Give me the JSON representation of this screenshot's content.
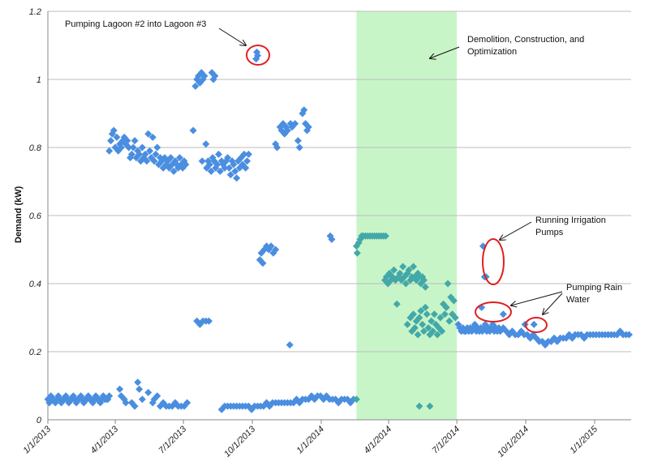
{
  "chart_data": {
    "type": "scatter",
    "title": "",
    "xlabel": "",
    "ylabel": "Demand (kW)",
    "ylim": [
      0,
      1.2
    ],
    "yticks": [
      "0",
      "0.2",
      "0.4",
      "0.6",
      "0.8",
      "1",
      "1.2"
    ],
    "yticks_values": [
      0,
      0.2,
      0.4,
      0.6,
      0.8,
      1,
      1.2
    ],
    "x_unit": "days since 1/1/2013",
    "xlim": [
      0,
      778
    ],
    "xticks": [
      {
        "label": "1/1/2013",
        "day": 0
      },
      {
        "label": "4/1/2013",
        "day": 90
      },
      {
        "label": "7/1/2013",
        "day": 181
      },
      {
        "label": "10/1/2013",
        "day": 273
      },
      {
        "label": "1/1/2014",
        "day": 365
      },
      {
        "label": "4/1/2014",
        "day": 455
      },
      {
        "label": "7/1/2014",
        "day": 546
      },
      {
        "label": "10/1/2014",
        "day": 638
      },
      {
        "label": "1/1/2015",
        "day": 730
      }
    ],
    "grid": true,
    "shaded_period": {
      "label": "Demolition, Construction, and Optimization",
      "start_day": 412,
      "end_day": 546,
      "color": "#c8f5c8"
    },
    "colors": {
      "normal": "#4a8ee0",
      "construction": "#44a8a8",
      "annotation": "#e02020"
    },
    "annotations": [
      {
        "text": "Pumping Lagoon #2 into Lagoon #3"
      },
      {
        "text": "Demolition, Construction, and Optimization"
      },
      {
        "text": "Running Irrigation Pumps"
      },
      {
        "text": "Pumping Rain Water"
      }
    ],
    "points": [
      [
        0,
        0.06
      ],
      [
        2,
        0.05
      ],
      [
        4,
        0.07
      ],
      [
        6,
        0.06
      ],
      [
        8,
        0.06
      ],
      [
        10,
        0.05
      ],
      [
        12,
        0.06
      ],
      [
        14,
        0.07
      ],
      [
        16,
        0.06
      ],
      [
        18,
        0.05
      ],
      [
        20,
        0.06
      ],
      [
        22,
        0.06
      ],
      [
        24,
        0.07
      ],
      [
        26,
        0.06
      ],
      [
        28,
        0.05
      ],
      [
        30,
        0.06
      ],
      [
        32,
        0.06
      ],
      [
        34,
        0.07
      ],
      [
        36,
        0.06
      ],
      [
        38,
        0.05
      ],
      [
        40,
        0.06
      ],
      [
        42,
        0.06
      ],
      [
        44,
        0.07
      ],
      [
        46,
        0.06
      ],
      [
        48,
        0.05
      ],
      [
        50,
        0.06
      ],
      [
        52,
        0.06
      ],
      [
        54,
        0.07
      ],
      [
        56,
        0.06
      ],
      [
        58,
        0.06
      ],
      [
        60,
        0.05
      ],
      [
        62,
        0.06
      ],
      [
        64,
        0.07
      ],
      [
        66,
        0.06
      ],
      [
        68,
        0.06
      ],
      [
        70,
        0.05
      ],
      [
        72,
        0.06
      ],
      [
        74,
        0.07
      ],
      [
        76,
        0.06
      ],
      [
        78,
        0.06
      ],
      [
        80,
        0.06
      ],
      [
        82,
        0.07
      ],
      [
        82,
        0.79
      ],
      [
        84,
        0.82
      ],
      [
        86,
        0.84
      ],
      [
        88,
        0.85
      ],
      [
        90,
        0.8
      ],
      [
        92,
        0.83
      ],
      [
        94,
        0.79
      ],
      [
        96,
        0.81
      ],
      [
        98,
        0.8
      ],
      [
        100,
        0.82
      ],
      [
        102,
        0.83
      ],
      [
        104,
        0.81
      ],
      [
        106,
        0.82
      ],
      [
        108,
        0.8
      ],
      [
        110,
        0.77
      ],
      [
        112,
        0.78
      ],
      [
        114,
        0.8
      ],
      [
        116,
        0.82
      ],
      [
        118,
        0.77
      ],
      [
        120,
        0.79
      ],
      [
        122,
        0.78
      ],
      [
        124,
        0.76
      ],
      [
        126,
        0.8
      ],
      [
        128,
        0.77
      ],
      [
        130,
        0.78
      ],
      [
        132,
        0.76
      ],
      [
        134,
        0.84
      ],
      [
        136,
        0.79
      ],
      [
        138,
        0.77
      ],
      [
        140,
        0.83
      ],
      [
        142,
        0.76
      ],
      [
        144,
        0.78
      ],
      [
        146,
        0.8
      ],
      [
        148,
        0.75
      ],
      [
        150,
        0.77
      ],
      [
        152,
        0.76
      ],
      [
        154,
        0.74
      ],
      [
        156,
        0.77
      ],
      [
        158,
        0.75
      ],
      [
        160,
        0.76
      ],
      [
        162,
        0.74
      ],
      [
        164,
        0.77
      ],
      [
        166,
        0.75
      ],
      [
        168,
        0.73
      ],
      [
        170,
        0.76
      ],
      [
        172,
        0.75
      ],
      [
        174,
        0.74
      ],
      [
        176,
        0.77
      ],
      [
        178,
        0.75
      ],
      [
        180,
        0.74
      ],
      [
        182,
        0.76
      ],
      [
        184,
        0.75
      ],
      [
        96,
        0.09
      ],
      [
        98,
        0.07
      ],
      [
        102,
        0.06
      ],
      [
        104,
        0.05
      ],
      [
        112,
        0.05
      ],
      [
        116,
        0.04
      ],
      [
        120,
        0.11
      ],
      [
        122,
        0.09
      ],
      [
        126,
        0.06
      ],
      [
        134,
        0.08
      ],
      [
        140,
        0.05
      ],
      [
        142,
        0.06
      ],
      [
        146,
        0.07
      ],
      [
        150,
        0.04
      ],
      [
        154,
        0.05
      ],
      [
        158,
        0.04
      ],
      [
        162,
        0.04
      ],
      [
        166,
        0.04
      ],
      [
        170,
        0.05
      ],
      [
        174,
        0.04
      ],
      [
        178,
        0.04
      ],
      [
        182,
        0.04
      ],
      [
        186,
        0.05
      ],
      [
        194,
        0.85
      ],
      [
        197,
        0.98
      ],
      [
        199,
        1.0
      ],
      [
        201,
        1.01
      ],
      [
        203,
        0.99
      ],
      [
        205,
        1.02
      ],
      [
        207,
        1.0
      ],
      [
        209,
        1.01
      ],
      [
        219,
        1.02
      ],
      [
        221,
        1.0
      ],
      [
        223,
        1.01
      ],
      [
        199,
        0.29
      ],
      [
        203,
        0.28
      ],
      [
        207,
        0.29
      ],
      [
        211,
        0.29
      ],
      [
        215,
        0.29
      ],
      [
        211,
        0.81
      ],
      [
        206,
        0.76
      ],
      [
        212,
        0.74
      ],
      [
        214,
        0.76
      ],
      [
        216,
        0.75
      ],
      [
        218,
        0.73
      ],
      [
        220,
        0.77
      ],
      [
        222,
        0.76
      ],
      [
        224,
        0.74
      ],
      [
        226,
        0.75
      ],
      [
        228,
        0.78
      ],
      [
        230,
        0.73
      ],
      [
        232,
        0.76
      ],
      [
        234,
        0.75
      ],
      [
        236,
        0.74
      ],
      [
        238,
        0.76
      ],
      [
        240,
        0.77
      ],
      [
        242,
        0.74
      ],
      [
        244,
        0.72
      ],
      [
        246,
        0.76
      ],
      [
        248,
        0.75
      ],
      [
        250,
        0.73
      ],
      [
        252,
        0.71
      ],
      [
        254,
        0.76
      ],
      [
        256,
        0.74
      ],
      [
        258,
        0.77
      ],
      [
        260,
        0.75
      ],
      [
        262,
        0.78
      ],
      [
        264,
        0.74
      ],
      [
        266,
        0.76
      ],
      [
        268,
        0.78
      ],
      [
        232,
        0.03
      ],
      [
        236,
        0.04
      ],
      [
        240,
        0.04
      ],
      [
        244,
        0.04
      ],
      [
        248,
        0.04
      ],
      [
        252,
        0.04
      ],
      [
        256,
        0.04
      ],
      [
        260,
        0.04
      ],
      [
        264,
        0.04
      ],
      [
        268,
        0.04
      ],
      [
        272,
        0.03
      ],
      [
        276,
        0.04
      ],
      [
        280,
        0.04
      ],
      [
        284,
        0.04
      ],
      [
        288,
        0.04
      ],
      [
        292,
        0.05
      ],
      [
        296,
        0.04
      ],
      [
        300,
        0.05
      ],
      [
        304,
        0.05
      ],
      [
        308,
        0.05
      ],
      [
        312,
        0.05
      ],
      [
        316,
        0.05
      ],
      [
        320,
        0.05
      ],
      [
        324,
        0.05
      ],
      [
        328,
        0.05
      ],
      [
        332,
        0.06
      ],
      [
        336,
        0.05
      ],
      [
        340,
        0.06
      ],
      [
        344,
        0.06
      ],
      [
        348,
        0.06
      ],
      [
        352,
        0.07
      ],
      [
        356,
        0.06
      ],
      [
        360,
        0.07
      ],
      [
        364,
        0.07
      ],
      [
        368,
        0.06
      ],
      [
        372,
        0.07
      ],
      [
        376,
        0.06
      ],
      [
        380,
        0.06
      ],
      [
        384,
        0.06
      ],
      [
        388,
        0.05
      ],
      [
        392,
        0.06
      ],
      [
        396,
        0.06
      ],
      [
        400,
        0.06
      ],
      [
        404,
        0.05
      ],
      [
        408,
        0.06
      ],
      [
        412,
        0.06
      ],
      [
        278,
        1.06
      ],
      [
        279,
        1.08
      ],
      [
        280,
        1.07
      ],
      [
        283,
        0.47
      ],
      [
        285,
        0.49
      ],
      [
        287,
        0.46
      ],
      [
        289,
        0.5
      ],
      [
        292,
        0.51
      ],
      [
        295,
        0.5
      ],
      [
        298,
        0.51
      ],
      [
        301,
        0.49
      ],
      [
        304,
        0.5
      ],
      [
        304,
        0.81
      ],
      [
        306,
        0.8
      ],
      [
        310,
        0.86
      ],
      [
        312,
        0.85
      ],
      [
        314,
        0.87
      ],
      [
        316,
        0.84
      ],
      [
        318,
        0.86
      ],
      [
        320,
        0.85
      ],
      [
        324,
        0.87
      ],
      [
        326,
        0.86
      ],
      [
        330,
        0.87
      ],
      [
        334,
        0.82
      ],
      [
        336,
        0.8
      ],
      [
        340,
        0.9
      ],
      [
        342,
        0.91
      ],
      [
        344,
        0.87
      ],
      [
        346,
        0.85
      ],
      [
        348,
        0.86
      ],
      [
        323,
        0.22
      ],
      [
        377,
        0.54
      ],
      [
        379,
        0.53
      ],
      [
        412,
        0.51
      ],
      [
        413,
        0.49
      ],
      [
        415,
        0.52
      ],
      [
        417,
        0.53
      ],
      [
        419,
        0.54
      ],
      [
        421,
        0.54
      ],
      [
        424,
        0.54
      ],
      [
        427,
        0.54
      ],
      [
        430,
        0.54
      ],
      [
        433,
        0.54
      ],
      [
        436,
        0.54
      ],
      [
        439,
        0.54
      ],
      [
        442,
        0.54
      ],
      [
        445,
        0.54
      ],
      [
        448,
        0.54
      ],
      [
        451,
        0.54
      ],
      [
        450,
        0.41
      ],
      [
        452,
        0.42
      ],
      [
        454,
        0.4
      ],
      [
        456,
        0.43
      ],
      [
        458,
        0.41
      ],
      [
        460,
        0.42
      ],
      [
        462,
        0.44
      ],
      [
        464,
        0.41
      ],
      [
        466,
        0.34
      ],
      [
        468,
        0.42
      ],
      [
        470,
        0.43
      ],
      [
        472,
        0.41
      ],
      [
        474,
        0.45
      ],
      [
        476,
        0.42
      ],
      [
        478,
        0.4
      ],
      [
        480,
        0.43
      ],
      [
        482,
        0.44
      ],
      [
        484,
        0.41
      ],
      [
        486,
        0.42
      ],
      [
        488,
        0.45
      ],
      [
        490,
        0.42
      ],
      [
        492,
        0.41
      ],
      [
        494,
        0.43
      ],
      [
        496,
        0.42
      ],
      [
        498,
        0.4
      ],
      [
        500,
        0.42
      ],
      [
        502,
        0.41
      ],
      [
        504,
        0.39
      ],
      [
        480,
        0.28
      ],
      [
        484,
        0.3
      ],
      [
        486,
        0.26
      ],
      [
        488,
        0.31
      ],
      [
        490,
        0.27
      ],
      [
        492,
        0.29
      ],
      [
        494,
        0.25
      ],
      [
        496,
        0.3
      ],
      [
        498,
        0.32
      ],
      [
        500,
        0.28
      ],
      [
        502,
        0.26
      ],
      [
        504,
        0.33
      ],
      [
        506,
        0.31
      ],
      [
        508,
        0.27
      ],
      [
        510,
        0.25
      ],
      [
        512,
        0.29
      ],
      [
        514,
        0.26
      ],
      [
        516,
        0.31
      ],
      [
        518,
        0.28
      ],
      [
        520,
        0.25
      ],
      [
        522,
        0.27
      ],
      [
        524,
        0.3
      ],
      [
        526,
        0.26
      ],
      [
        528,
        0.34
      ],
      [
        530,
        0.31
      ],
      [
        532,
        0.33
      ],
      [
        534,
        0.4
      ],
      [
        536,
        0.29
      ],
      [
        538,
        0.36
      ],
      [
        540,
        0.31
      ],
      [
        542,
        0.35
      ],
      [
        544,
        0.3
      ],
      [
        496,
        0.04
      ],
      [
        510,
        0.04
      ],
      [
        548,
        0.28
      ],
      [
        550,
        0.27
      ],
      [
        552,
        0.26
      ],
      [
        554,
        0.27
      ],
      [
        556,
        0.26
      ],
      [
        558,
        0.26
      ],
      [
        560,
        0.27
      ],
      [
        562,
        0.26
      ],
      [
        564,
        0.27
      ],
      [
        566,
        0.26
      ],
      [
        568,
        0.27
      ],
      [
        570,
        0.28
      ],
      [
        572,
        0.26
      ],
      [
        574,
        0.27
      ],
      [
        576,
        0.26
      ],
      [
        578,
        0.27
      ],
      [
        580,
        0.26
      ],
      [
        582,
        0.27
      ],
      [
        584,
        0.28
      ],
      [
        586,
        0.26
      ],
      [
        588,
        0.27
      ],
      [
        590,
        0.26
      ],
      [
        592,
        0.27
      ],
      [
        594,
        0.28
      ],
      [
        596,
        0.26
      ],
      [
        598,
        0.27
      ],
      [
        600,
        0.26
      ],
      [
        602,
        0.27
      ],
      [
        579,
        0.33
      ],
      [
        581,
        0.51
      ],
      [
        583,
        0.42
      ],
      [
        585,
        0.42
      ],
      [
        608,
        0.31
      ],
      [
        604,
        0.26
      ],
      [
        608,
        0.27
      ],
      [
        612,
        0.26
      ],
      [
        616,
        0.25
      ],
      [
        620,
        0.26
      ],
      [
        624,
        0.25
      ],
      [
        628,
        0.25
      ],
      [
        632,
        0.26
      ],
      [
        636,
        0.25
      ],
      [
        637,
        0.28
      ],
      [
        640,
        0.25
      ],
      [
        644,
        0.24
      ],
      [
        648,
        0.25
      ],
      [
        649,
        0.28
      ],
      [
        652,
        0.24
      ],
      [
        656,
        0.23
      ],
      [
        660,
        0.23
      ],
      [
        664,
        0.22
      ],
      [
        668,
        0.23
      ],
      [
        672,
        0.23
      ],
      [
        676,
        0.24
      ],
      [
        680,
        0.23
      ],
      [
        684,
        0.24
      ],
      [
        688,
        0.24
      ],
      [
        692,
        0.24
      ],
      [
        696,
        0.25
      ],
      [
        700,
        0.24
      ],
      [
        704,
        0.25
      ],
      [
        708,
        0.25
      ],
      [
        712,
        0.25
      ],
      [
        716,
        0.24
      ],
      [
        720,
        0.25
      ],
      [
        724,
        0.25
      ],
      [
        728,
        0.25
      ],
      [
        732,
        0.25
      ],
      [
        736,
        0.25
      ],
      [
        740,
        0.25
      ],
      [
        744,
        0.25
      ],
      [
        748,
        0.25
      ],
      [
        752,
        0.25
      ],
      [
        756,
        0.25
      ],
      [
        760,
        0.25
      ],
      [
        764,
        0.26
      ],
      [
        768,
        0.25
      ],
      [
        772,
        0.25
      ],
      [
        776,
        0.25
      ]
    ]
  }
}
